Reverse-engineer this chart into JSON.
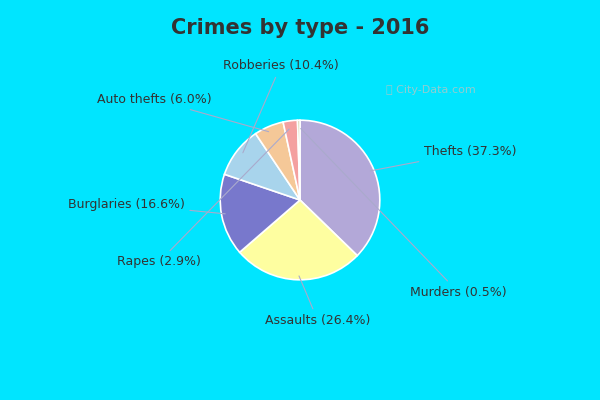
{
  "title": "Crimes by type - 2016",
  "display_labels": [
    "Thefts (37.3%)",
    "Assaults (26.4%)",
    "Burglaries (16.6%)",
    "Robberies (10.4%)",
    "Auto thefts (6.0%)",
    "Rapes (2.9%)",
    "Murders (0.5%)"
  ],
  "values": [
    37.3,
    26.4,
    16.6,
    10.4,
    6.0,
    2.9,
    0.5
  ],
  "colors": [
    "#b3a8d8",
    "#fefea0",
    "#7878cc",
    "#a8d4ec",
    "#f5c898",
    "#f4a0a0",
    "#d0d0a0"
  ],
  "bg_cyan": "#00e5ff",
  "bg_green": "#d0eddc",
  "title_color": "#333333",
  "title_fontsize": 15,
  "label_fontsize": 9,
  "watermark": "ⓘ City-Data.com",
  "watermark_color": "#aac8c8"
}
